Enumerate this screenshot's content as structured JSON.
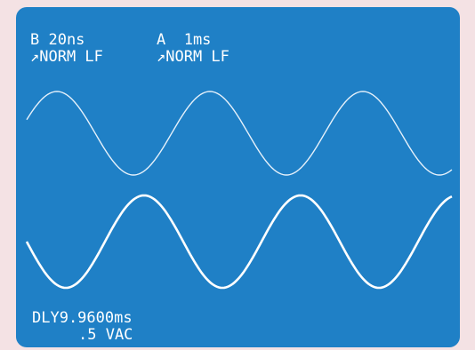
{
  "screen": {
    "top_left": {
      "timebase": "B 20ns",
      "trigger": "↗NORM LF"
    },
    "top_right": {
      "timebase": "A  1ms",
      "trigger": "↗NORM LF"
    },
    "bottom": {
      "delay": "DLY9.9600ms",
      "reading": ".5 VAC"
    }
  }
}
